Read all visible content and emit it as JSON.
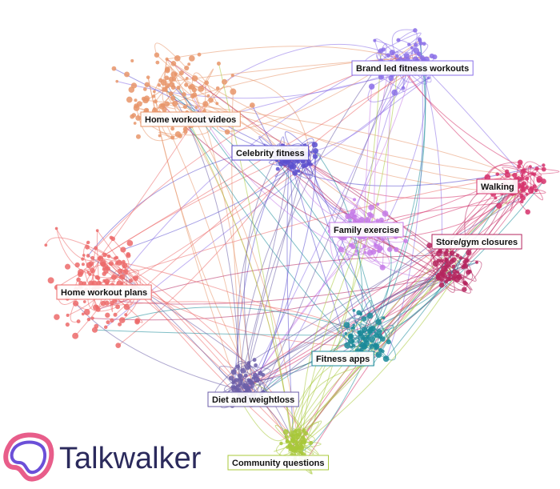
{
  "clusters": [
    {
      "label": "Brand led fitness workouts",
      "color": "#8a6fe8"
    },
    {
      "label": "Home workout videos",
      "color": "#e8956a"
    },
    {
      "label": "Celebrity fitness",
      "color": "#5a4fcf"
    },
    {
      "label": "Walking",
      "color": "#d6336c"
    },
    {
      "label": "Family exercise",
      "color": "#c57be8"
    },
    {
      "label": "Store/gym closures",
      "color": "#b5245e"
    },
    {
      "label": "Home workout plans",
      "color": "#ec6a6a"
    },
    {
      "label": "Fitness apps",
      "color": "#1a8a99"
    },
    {
      "label": "Diet and weightloss",
      "color": "#6b5ea8"
    },
    {
      "label": "Community questions",
      "color": "#a8c83a"
    }
  ],
  "logo": {
    "text": "Talkwalker"
  }
}
